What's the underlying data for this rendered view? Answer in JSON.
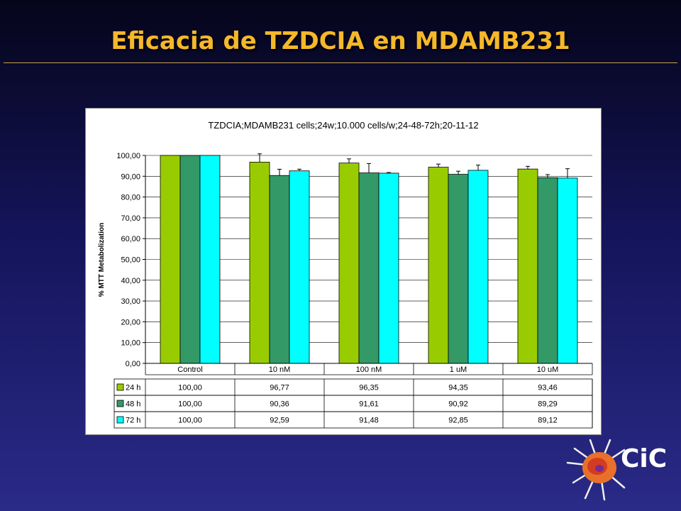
{
  "slide": {
    "title": "Eficacia de TZDCIA en MDAMB231",
    "logo_text": "CiC"
  },
  "chart_data": {
    "type": "bar",
    "title": "TZDCIA;MDAMB231 cells;24w;10.000 cells/w;24-48-72h;20-11-12",
    "ylabel": "% MTT Metabolization",
    "xlabel": "",
    "ylim": [
      0,
      100
    ],
    "yticks": [
      "0,00",
      "10,00",
      "20,00",
      "30,00",
      "40,00",
      "50,00",
      "60,00",
      "70,00",
      "80,00",
      "90,00",
      "100,00"
    ],
    "grid": true,
    "categories": [
      "Control",
      "10 nM",
      "100 nM",
      "1 uM",
      "10 uM"
    ],
    "series": [
      {
        "name": "24 h",
        "color": "#99cc00",
        "values": [
          100.0,
          96.77,
          96.35,
          94.35,
          93.46
        ],
        "labels": [
          "100,00",
          "96,77",
          "96,35",
          "94,35",
          "93,46"
        ],
        "err": [
          0,
          4.0,
          2.0,
          1.5,
          1.3
        ]
      },
      {
        "name": "48 h",
        "color": "#339966",
        "values": [
          100.0,
          90.36,
          91.61,
          90.92,
          89.29
        ],
        "labels": [
          "100,00",
          "90,36",
          "91,61",
          "90,92",
          "89,29"
        ],
        "err": [
          0,
          3.0,
          4.5,
          1.5,
          1.5
        ]
      },
      {
        "name": "72 h",
        "color": "#00ffff",
        "values": [
          100.0,
          92.59,
          91.48,
          92.85,
          89.12
        ],
        "labels": [
          "100,00",
          "92,59",
          "91,48",
          "92,85",
          "89,12"
        ],
        "err": [
          0,
          0.8,
          0.3,
          2.5,
          4.5
        ]
      }
    ],
    "legend_placement": "data table below plot"
  }
}
